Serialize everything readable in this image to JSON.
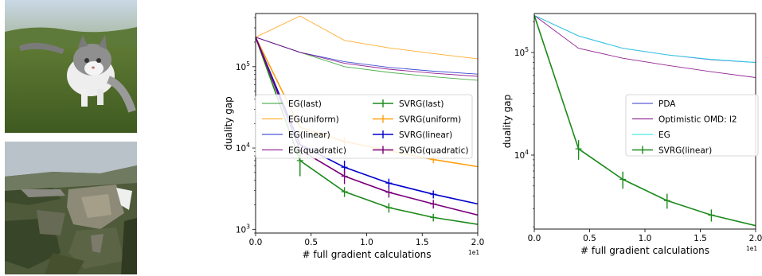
{
  "images": [
    {
      "name": "kitten-photo",
      "icon": "kitten-photo"
    },
    {
      "name": "segmented-kitten-photo",
      "icon": "segmented-image"
    }
  ],
  "chart_data": [
    {
      "type": "line",
      "xlabel": "# full gradient calculations",
      "ylabel": "duality gap",
      "x_scale_note": "1e1",
      "xlim": [
        0.0,
        2.0
      ],
      "ylim": [
        900,
        450000
      ],
      "yscale": "log",
      "xticks": [
        "0.0",
        "0.5",
        "1.0",
        "1.5",
        "2.0"
      ],
      "yticks": [
        {
          "value": 1000,
          "base": "10",
          "exp": "3"
        },
        {
          "value": 10000,
          "base": "10",
          "exp": "4"
        },
        {
          "value": 100000,
          "base": "10",
          "exp": "5"
        }
      ],
      "grid": false,
      "legend_position": "center",
      "legend_columns": 2,
      "series": [
        {
          "name": "EG(last)",
          "color": "#2ca02c",
          "thin": true,
          "x": [
            0,
            0.4,
            0.8,
            1.2,
            1.6,
            2.0
          ],
          "y": [
            230000,
            150000,
            100000,
            85000,
            75000,
            68000
          ]
        },
        {
          "name": "EG(uniform)",
          "color": "#ff9f0e",
          "thin": true,
          "x": [
            0,
            0.4,
            0.8,
            1.2,
            1.6,
            2.0
          ],
          "y": [
            230000,
            420000,
            210000,
            170000,
            145000,
            125000
          ]
        },
        {
          "name": "EG(linear)",
          "color": "#1f2ecc",
          "thin": true,
          "x": [
            0,
            0.4,
            0.8,
            1.2,
            1.6,
            2.0
          ],
          "y": [
            230000,
            150000,
            115000,
            98000,
            88000,
            81000
          ]
        },
        {
          "name": "EG(quadratic)",
          "color": "#800080",
          "thin": true,
          "x": [
            0,
            0.4,
            0.8,
            1.2,
            1.6,
            2.0
          ],
          "y": [
            230000,
            150000,
            110000,
            93000,
            83000,
            76000
          ]
        },
        {
          "name": "SVRG(last)",
          "color": "#1a8a1a",
          "thin": false,
          "x": [
            0,
            0.4,
            0.8,
            1.2,
            1.6,
            2.0
          ],
          "y": [
            230000,
            7000,
            2900,
            1850,
            1400,
            1150
          ],
          "err": [
            0,
            2500,
            400,
            250,
            150,
            0
          ]
        },
        {
          "name": "SVRG(uniform)",
          "color": "#ff9f0e",
          "thin": false,
          "x": [
            0,
            0.4,
            0.8,
            1.2,
            1.6,
            2.0
          ],
          "y": [
            230000,
            18000,
            12000,
            9300,
            7200,
            5900
          ],
          "err": [
            0,
            0,
            1500,
            900,
            700,
            0
          ]
        },
        {
          "name": "SVRG(linear)",
          "color": "#0000cc",
          "thin": false,
          "x": [
            0,
            0.4,
            0.8,
            1.2,
            1.6,
            2.0
          ],
          "y": [
            230000,
            11000,
            5800,
            3700,
            2700,
            2050
          ],
          "err": [
            0,
            0,
            1200,
            500,
            300,
            0
          ]
        },
        {
          "name": "SVRG(quadratic)",
          "color": "#7a007a",
          "thin": false,
          "x": [
            0,
            0.4,
            0.8,
            1.2,
            1.6,
            2.0
          ],
          "y": [
            230000,
            9500,
            4500,
            2850,
            2050,
            1500
          ],
          "err": [
            0,
            0,
            900,
            400,
            250,
            0
          ]
        }
      ]
    },
    {
      "type": "line",
      "xlabel": "# full gradient calculations",
      "ylabel": "duality gap",
      "x_scale_note": "1e1",
      "xlim": [
        0.0,
        2.0
      ],
      "ylim": [
        1900,
        240000
      ],
      "yscale": "log",
      "xticks": [
        "0.0",
        "0.5",
        "1.0",
        "1.5",
        "2.0"
      ],
      "yticks": [
        {
          "value": 10000,
          "base": "10",
          "exp": "4"
        },
        {
          "value": 100000,
          "base": "10",
          "exp": "5"
        }
      ],
      "grid": false,
      "legend_position": "center-right",
      "legend_columns": 1,
      "series": [
        {
          "name": "PDA",
          "color": "#3333cc",
          "thin": true,
          "x": [
            0,
            0.4,
            0.8,
            1.2,
            1.6,
            2.0
          ],
          "y": [
            230000,
            145000,
            110000,
            95000,
            85000,
            80000
          ]
        },
        {
          "name": "Optimistic OMD: l2",
          "color": "#800080",
          "thin": true,
          "x": [
            0,
            0.4,
            0.8,
            1.2,
            1.6,
            2.0
          ],
          "y": [
            230000,
            110000,
            88000,
            75000,
            65000,
            57000
          ]
        },
        {
          "name": "EG",
          "color": "#22e5e5",
          "thin": true,
          "x": [
            0,
            0.4,
            0.8,
            1.2,
            1.6,
            2.0
          ],
          "y": [
            230000,
            145000,
            110000,
            95000,
            86000,
            80000
          ]
        },
        {
          "name": "SVRG(linear)",
          "color": "#1a8a1a",
          "thin": false,
          "x": [
            0,
            0.4,
            0.8,
            1.2,
            1.6,
            2.0
          ],
          "y": [
            230000,
            11500,
            5800,
            3600,
            2600,
            2050
          ],
          "err": [
            0,
            2500,
            1100,
            600,
            350,
            0
          ]
        }
      ]
    }
  ]
}
